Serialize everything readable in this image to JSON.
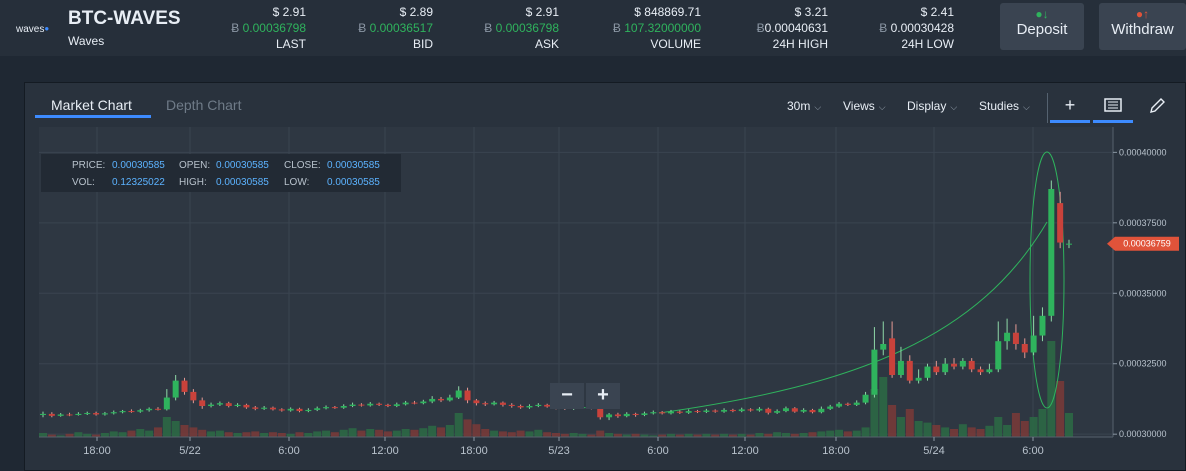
{
  "header": {
    "logo_text": "waves",
    "pair": "BTC-WAVES",
    "pair_name": "Waves",
    "stats": [
      {
        "usd": "$ 2.91",
        "btc": "0.00036798",
        "label": "LAST",
        "green": true
      },
      {
        "usd": "$ 2.89",
        "btc": "0.00036517",
        "label": "BID",
        "green": true
      },
      {
        "usd": "$ 2.91",
        "btc": "0.00036798",
        "label": "ASK",
        "green": true
      },
      {
        "usd": "$ 848869.71",
        "btc": "107.32000000",
        "label": "VOLUME",
        "green": true
      },
      {
        "usd": "$ 3.21",
        "btc": "0.00040631",
        "label": "24H HIGH",
        "green": false
      },
      {
        "usd": "$ 2.41",
        "btc": "0.00030428",
        "label": "24H LOW",
        "green": false
      }
    ],
    "btc_symbol": "Ƀ",
    "deposit_label": "Deposit",
    "withdraw_label": "Withdraw"
  },
  "chart_panel": {
    "tabs": [
      "Market Chart",
      "Depth Chart"
    ],
    "active_tab": "Market Chart",
    "interval": "30m",
    "views": "Views",
    "display": "Display",
    "studies": "Studies",
    "tools": [
      "crosshair-icon",
      "book-icon",
      "pencil-icon"
    ]
  },
  "info_box": {
    "price_label": "PRICE:",
    "price": "0.00030585",
    "open_label": "OPEN:",
    "open": "0.00030585",
    "close_label": "CLOSE:",
    "close": "0.00030585",
    "vol_label": "VOL:",
    "vol": "0.12325022",
    "high_label": "HIGH:",
    "high": "0.00030585",
    "low_label": "LOW:",
    "low": "0.00030585"
  },
  "zoom": {
    "minus": "−",
    "plus": "+"
  },
  "colors": {
    "up": "#2fb35d",
    "down": "#c9423b",
    "accent": "#3d8bff",
    "price_tag": "#e0533a"
  },
  "chart_data": {
    "type": "candlestick",
    "x_tick_labels": [
      "18:00",
      "5/22",
      "6:00",
      "12:00",
      "18:00",
      "5/23",
      "6:00",
      "12:00",
      "18:00",
      "5/24",
      "6:00"
    ],
    "y_tick_labels": [
      "0.00040000",
      "0.00037500",
      "0.00035000",
      "0.00032500",
      "0.00030000"
    ],
    "ylim": [
      0.000299,
      0.000409
    ],
    "current_price": "0.00036759",
    "grid": true,
    "candles": [
      {
        "o": 0.0003068,
        "c": 0.0003072,
        "h": 0.000308,
        "l": 0.000306
      },
      {
        "o": 0.0003072,
        "c": 0.0003065,
        "h": 0.0003078,
        "l": 0.000306
      },
      {
        "o": 0.0003065,
        "c": 0.000307,
        "h": 0.0003075,
        "l": 0.0003062
      },
      {
        "o": 0.000307,
        "c": 0.0003068,
        "h": 0.0003076,
        "l": 0.0003064
      },
      {
        "o": 0.0003068,
        "c": 0.0003072,
        "h": 0.0003078,
        "l": 0.0003066
      },
      {
        "o": 0.0003072,
        "c": 0.0003075,
        "h": 0.000308,
        "l": 0.0003068
      },
      {
        "o": 0.0003075,
        "c": 0.000307,
        "h": 0.000308,
        "l": 0.0003066
      },
      {
        "o": 0.000307,
        "c": 0.0003074,
        "h": 0.0003079,
        "l": 0.0003066
      },
      {
        "o": 0.0003074,
        "c": 0.0003078,
        "h": 0.0003084,
        "l": 0.000307
      },
      {
        "o": 0.0003078,
        "c": 0.0003082,
        "h": 0.0003086,
        "l": 0.0003074
      },
      {
        "o": 0.0003082,
        "c": 0.000308,
        "h": 0.0003088,
        "l": 0.0003076
      },
      {
        "o": 0.000308,
        "c": 0.0003085,
        "h": 0.000309,
        "l": 0.0003076
      },
      {
        "o": 0.0003085,
        "c": 0.000309,
        "h": 0.0003095,
        "l": 0.000308
      },
      {
        "o": 0.000309,
        "c": 0.0003088,
        "h": 0.0003096,
        "l": 0.0003084
      },
      {
        "o": 0.0003088,
        "c": 0.000313,
        "h": 0.000316,
        "l": 0.0003084
      },
      {
        "o": 0.000313,
        "c": 0.000319,
        "h": 0.000321,
        "l": 0.000312
      },
      {
        "o": 0.000319,
        "c": 0.000315,
        "h": 0.00032,
        "l": 0.000314
      },
      {
        "o": 0.000315,
        "c": 0.000312,
        "h": 0.000316,
        "l": 0.000311
      },
      {
        "o": 0.000312,
        "c": 0.00031,
        "h": 0.000313,
        "l": 0.000309
      },
      {
        "o": 0.00031,
        "c": 0.0003105,
        "h": 0.0003112,
        "l": 0.0003095
      },
      {
        "o": 0.0003105,
        "c": 0.000311,
        "h": 0.0003116,
        "l": 0.00031
      },
      {
        "o": 0.000311,
        "c": 0.00031,
        "h": 0.0003115,
        "l": 0.0003095
      },
      {
        "o": 0.00031,
        "c": 0.0003104,
        "h": 0.000311,
        "l": 0.0003096
      },
      {
        "o": 0.0003104,
        "c": 0.0003095,
        "h": 0.0003108,
        "l": 0.000309
      },
      {
        "o": 0.0003095,
        "c": 0.000309,
        "h": 0.00031,
        "l": 0.0003085
      },
      {
        "o": 0.000309,
        "c": 0.0003094,
        "h": 0.00031,
        "l": 0.0003086
      },
      {
        "o": 0.0003094,
        "c": 0.0003088,
        "h": 0.0003098,
        "l": 0.0003084
      },
      {
        "o": 0.0003088,
        "c": 0.0003084,
        "h": 0.0003092,
        "l": 0.000308
      },
      {
        "o": 0.0003084,
        "c": 0.000309,
        "h": 0.0003095,
        "l": 0.000308
      },
      {
        "o": 0.000309,
        "c": 0.0003082,
        "h": 0.0003094,
        "l": 0.0003078
      },
      {
        "o": 0.0003082,
        "c": 0.0003086,
        "h": 0.0003092,
        "l": 0.0003078
      },
      {
        "o": 0.0003086,
        "c": 0.0003092,
        "h": 0.0003098,
        "l": 0.0003082
      },
      {
        "o": 0.0003092,
        "c": 0.0003096,
        "h": 0.0003102,
        "l": 0.0003088
      },
      {
        "o": 0.0003096,
        "c": 0.0003094,
        "h": 0.00031,
        "l": 0.000309
      },
      {
        "o": 0.0003094,
        "c": 0.00031,
        "h": 0.0003106,
        "l": 0.000309
      },
      {
        "o": 0.00031,
        "c": 0.0003105,
        "h": 0.0003112,
        "l": 0.0003096
      },
      {
        "o": 0.0003105,
        "c": 0.0003102,
        "h": 0.000311,
        "l": 0.0003098
      },
      {
        "o": 0.0003102,
        "c": 0.0003108,
        "h": 0.0003114,
        "l": 0.0003098
      },
      {
        "o": 0.0003108,
        "c": 0.0003104,
        "h": 0.0003112,
        "l": 0.00031
      },
      {
        "o": 0.0003104,
        "c": 0.00031,
        "h": 0.0003108,
        "l": 0.0003096
      },
      {
        "o": 0.00031,
        "c": 0.0003106,
        "h": 0.0003112,
        "l": 0.0003096
      },
      {
        "o": 0.0003106,
        "c": 0.0003112,
        "h": 0.0003118,
        "l": 0.0003102
      },
      {
        "o": 0.0003112,
        "c": 0.000311,
        "h": 0.0003118,
        "l": 0.0003106
      },
      {
        "o": 0.000311,
        "c": 0.0003116,
        "h": 0.0003122,
        "l": 0.0003106
      },
      {
        "o": 0.0003116,
        "c": 0.0003125,
        "h": 0.0003135,
        "l": 0.000311
      },
      {
        "o": 0.0003125,
        "c": 0.000312,
        "h": 0.0003132,
        "l": 0.0003114
      },
      {
        "o": 0.000312,
        "c": 0.000313,
        "h": 0.000314,
        "l": 0.0003116
      },
      {
        "o": 0.000313,
        "c": 0.0003155,
        "h": 0.000317,
        "l": 0.0003125
      },
      {
        "o": 0.0003155,
        "c": 0.000312,
        "h": 0.0003165,
        "l": 0.000311
      },
      {
        "o": 0.000312,
        "c": 0.000311,
        "h": 0.0003125,
        "l": 0.0003102
      },
      {
        "o": 0.000311,
        "c": 0.0003106,
        "h": 0.0003116,
        "l": 0.00031
      },
      {
        "o": 0.0003106,
        "c": 0.0003112,
        "h": 0.0003118,
        "l": 0.0003102
      },
      {
        "o": 0.0003112,
        "c": 0.0003104,
        "h": 0.0003116,
        "l": 0.0003098
      },
      {
        "o": 0.0003104,
        "c": 0.00031,
        "h": 0.000311,
        "l": 0.0003094
      },
      {
        "o": 0.00031,
        "c": 0.0003095,
        "h": 0.0003105,
        "l": 0.000309
      },
      {
        "o": 0.0003095,
        "c": 0.00031,
        "h": 0.0003106,
        "l": 0.000309
      },
      {
        "o": 0.00031,
        "c": 0.0003104,
        "h": 0.000311,
        "l": 0.0003096
      },
      {
        "o": 0.0003104,
        "c": 0.0003098,
        "h": 0.0003108,
        "l": 0.0003094
      },
      {
        "o": 0.0003098,
        "c": 0.0003094,
        "h": 0.0003102,
        "l": 0.0003088
      },
      {
        "o": 0.0003094,
        "c": 0.000309,
        "h": 0.0003098,
        "l": 0.0003086
      },
      {
        "o": 0.000309,
        "c": 0.0003094,
        "h": 0.00031,
        "l": 0.0003086
      },
      {
        "o": 0.0003094,
        "c": 0.0003096,
        "h": 0.00031,
        "l": 0.000309
      },
      {
        "o": 0.0003096,
        "c": 0.0003092,
        "h": 0.00031,
        "l": 0.0003088
      },
      {
        "o": 0.0003092,
        "c": 0.000306,
        "h": 0.0003096,
        "l": 0.0003052
      },
      {
        "o": 0.000306,
        "c": 0.000307,
        "h": 0.0003075,
        "l": 0.000305
      },
      {
        "o": 0.000307,
        "c": 0.0003064,
        "h": 0.0003076,
        "l": 0.0003058
      },
      {
        "o": 0.0003064,
        "c": 0.0003072,
        "h": 0.0003078,
        "l": 0.000306
      },
      {
        "o": 0.0003072,
        "c": 0.0003068,
        "h": 0.0003076,
        "l": 0.0003062
      },
      {
        "o": 0.0003068,
        "c": 0.0003074,
        "h": 0.000308,
        "l": 0.0003064
      },
      {
        "o": 0.0003074,
        "c": 0.0003078,
        "h": 0.0003084,
        "l": 0.000307
      },
      {
        "o": 0.0003078,
        "c": 0.0003074,
        "h": 0.0003082,
        "l": 0.000307
      },
      {
        "o": 0.0003074,
        "c": 0.000308,
        "h": 0.0003086,
        "l": 0.000307
      },
      {
        "o": 0.000308,
        "c": 0.0003076,
        "h": 0.0003084,
        "l": 0.0003072
      },
      {
        "o": 0.0003076,
        "c": 0.0003082,
        "h": 0.0003088,
        "l": 0.0003072
      },
      {
        "o": 0.0003082,
        "c": 0.0003079,
        "h": 0.0003086,
        "l": 0.0003075
      },
      {
        "o": 0.0003079,
        "c": 0.0003084,
        "h": 0.000309,
        "l": 0.0003075
      },
      {
        "o": 0.0003084,
        "c": 0.000308,
        "h": 0.0003088,
        "l": 0.0003076
      },
      {
        "o": 0.000308,
        "c": 0.0003086,
        "h": 0.0003092,
        "l": 0.0003076
      },
      {
        "o": 0.0003086,
        "c": 0.0003082,
        "h": 0.000309,
        "l": 0.0003078
      },
      {
        "o": 0.0003082,
        "c": 0.0003088,
        "h": 0.0003094,
        "l": 0.0003078
      },
      {
        "o": 0.0003088,
        "c": 0.0003084,
        "h": 0.0003092,
        "l": 0.000308
      },
      {
        "o": 0.0003084,
        "c": 0.000309,
        "h": 0.0003096,
        "l": 0.000308
      },
      {
        "o": 0.000309,
        "c": 0.0003076,
        "h": 0.0003094,
        "l": 0.000307
      },
      {
        "o": 0.0003076,
        "c": 0.0003082,
        "h": 0.0003088,
        "l": 0.0003072
      },
      {
        "o": 0.0003082,
        "c": 0.0003092,
        "h": 0.0003098,
        "l": 0.0003078
      },
      {
        "o": 0.0003092,
        "c": 0.000308,
        "h": 0.0003096,
        "l": 0.0003076
      },
      {
        "o": 0.000308,
        "c": 0.0003086,
        "h": 0.0003092,
        "l": 0.0003076
      },
      {
        "o": 0.0003086,
        "c": 0.0003078,
        "h": 0.000309,
        "l": 0.0003074
      },
      {
        "o": 0.0003078,
        "c": 0.000309,
        "h": 0.0003098,
        "l": 0.0003074
      },
      {
        "o": 0.000309,
        "c": 0.0003098,
        "h": 0.0003104,
        "l": 0.0003086
      },
      {
        "o": 0.0003098,
        "c": 0.0003108,
        "h": 0.0003114,
        "l": 0.0003094
      },
      {
        "o": 0.0003108,
        "c": 0.0003104,
        "h": 0.0003112,
        "l": 0.00031
      },
      {
        "o": 0.0003104,
        "c": 0.0003112,
        "h": 0.000312,
        "l": 0.00031
      },
      {
        "o": 0.0003112,
        "c": 0.000314,
        "h": 0.000315,
        "l": 0.0003106
      },
      {
        "o": 0.000314,
        "c": 0.00033,
        "h": 0.000338,
        "l": 0.000313
      },
      {
        "o": 0.00033,
        "c": 0.000332,
        "h": 0.00034,
        "l": 0.000328
      },
      {
        "o": 0.000334,
        "c": 0.000321,
        "h": 0.00034,
        "l": 0.00032
      },
      {
        "o": 0.000321,
        "c": 0.000326,
        "h": 0.000331,
        "l": 0.00032
      },
      {
        "o": 0.000326,
        "c": 0.000319,
        "h": 0.000328,
        "l": 0.000318
      },
      {
        "o": 0.000319,
        "c": 0.00032,
        "h": 0.000323,
        "l": 0.000318
      },
      {
        "o": 0.00032,
        "c": 0.000324,
        "h": 0.000325,
        "l": 0.000319
      },
      {
        "o": 0.000324,
        "c": 0.000322,
        "h": 0.000326,
        "l": 0.000321
      },
      {
        "o": 0.000322,
        "c": 0.000325,
        "h": 0.000327,
        "l": 0.000321
      },
      {
        "o": 0.000325,
        "c": 0.000324,
        "h": 0.000327,
        "l": 0.000323
      },
      {
        "o": 0.000324,
        "c": 0.000326,
        "h": 0.000327,
        "l": 0.000323
      },
      {
        "o": 0.000326,
        "c": 0.000323,
        "h": 0.000327,
        "l": 0.000322
      },
      {
        "o": 0.000323,
        "c": 0.000322,
        "h": 0.000324,
        "l": 0.000321
      },
      {
        "o": 0.000322,
        "c": 0.000323,
        "h": 0.000325,
        "l": 0.0003215
      },
      {
        "o": 0.000323,
        "c": 0.000333,
        "h": 0.00034,
        "l": 0.000322
      },
      {
        "o": 0.000333,
        "c": 0.000336,
        "h": 0.000341,
        "l": 0.00033
      },
      {
        "o": 0.000336,
        "c": 0.000332,
        "h": 0.000339,
        "l": 0.00033
      },
      {
        "o": 0.000332,
        "c": 0.000329,
        "h": 0.000334,
        "l": 0.000327
      },
      {
        "o": 0.000329,
        "c": 0.000335,
        "h": 0.000342,
        "l": 0.000328
      },
      {
        "o": 0.000335,
        "c": 0.000342,
        "h": 0.000345,
        "l": 0.000333
      },
      {
        "o": 0.000342,
        "c": 0.000387,
        "h": 0.00039,
        "l": 0.00034
      },
      {
        "o": 0.000382,
        "c": 0.000368,
        "h": 0.000386,
        "l": 0.000366
      },
      {
        "o": 0.0003676,
        "c": 0.0003676,
        "h": 0.000369,
        "l": 0.000366
      }
    ],
    "volumes": [
      0.5,
      0.3,
      0.2,
      0.4,
      0.6,
      0.4,
      0.3,
      0.5,
      0.7,
      0.6,
      0.8,
      1.0,
      0.8,
      1.2,
      2.5,
      2.0,
      1.5,
      1.2,
      0.9,
      0.7,
      0.8,
      0.6,
      0.5,
      0.6,
      0.7,
      0.5,
      0.6,
      0.5,
      0.4,
      0.6,
      0.5,
      0.7,
      0.8,
      0.6,
      0.9,
      1.1,
      0.8,
      1.0,
      0.9,
      0.7,
      0.8,
      1.0,
      0.9,
      1.1,
      1.4,
      1.2,
      1.5,
      3.0,
      2.2,
      1.6,
      1.0,
      0.8,
      0.7,
      0.6,
      0.8,
      0.7,
      0.9,
      0.6,
      0.5,
      0.4,
      0.5,
      0.4,
      0.3,
      0.8,
      0.5,
      0.4,
      0.3,
      0.4,
      0.3,
      0.2,
      0.3,
      0.4,
      0.3,
      0.4,
      0.3,
      0.4,
      0.3,
      0.4,
      0.3,
      0.4,
      0.3,
      0.5,
      0.4,
      0.6,
      0.5,
      0.4,
      0.5,
      0.6,
      0.7,
      0.8,
      0.9,
      0.7,
      0.8,
      1.2,
      6.0,
      7.5,
      4.0,
      2.5,
      3.5,
      2.0,
      1.8,
      1.5,
      1.2,
      1.0,
      1.6,
      1.2,
      1.0,
      1.4,
      2.5,
      1.5,
      3.0,
      2.0,
      2.5,
      3.5,
      12.0,
      7.0,
      3.0
    ]
  }
}
